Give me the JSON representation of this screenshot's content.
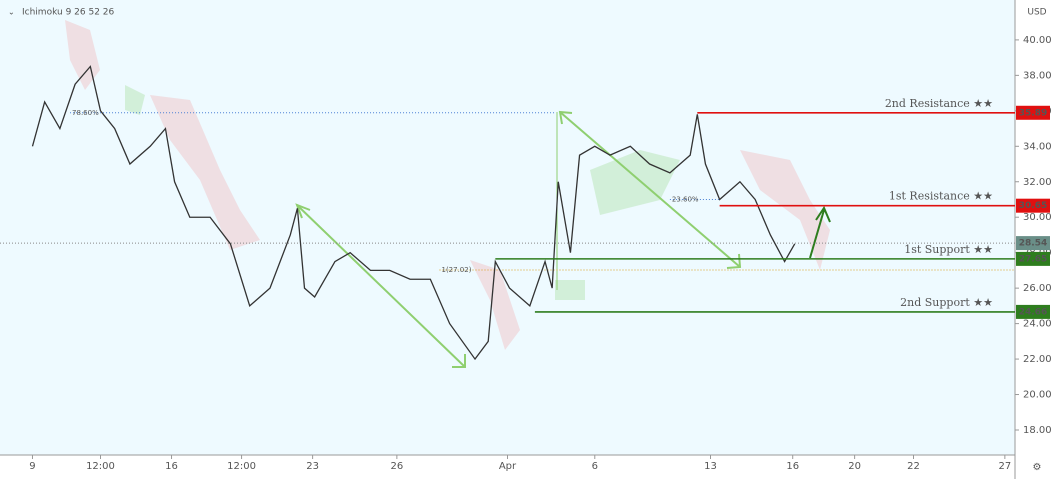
{
  "chart_data": {
    "type": "line",
    "indicator": "Ichimoku 9 26 52 26",
    "currency": "USD",
    "x": [
      3.2,
      4.4,
      5.9,
      7.4,
      8.9,
      9.9,
      11.3,
      12.8,
      14.8,
      16.3,
      17.2,
      18.7,
      20.7,
      22.7,
      24.6,
      26.6,
      28.6,
      29.3,
      30,
      31,
      33,
      34.5,
      36.5,
      38.4,
      40.4,
      42.4,
      44.3,
      46.8,
      48.1,
      48.8,
      50.2,
      52.2,
      53.7,
      54.4,
      55,
      56.2,
      57.1,
      58.6,
      60.1,
      62.1,
      64,
      66,
      68,
      68.7,
      69.5,
      70.9,
      72.9,
      74.4,
      75.9,
      77.3,
      78.3
    ],
    "values": [
      34,
      36.5,
      35,
      37.5,
      38.5,
      36,
      35,
      33,
      34,
      35,
      32,
      30,
      30,
      28.5,
      25,
      26,
      29,
      30.5,
      26,
      25.5,
      27.5,
      28,
      27,
      27,
      26.5,
      26.5,
      24,
      22,
      23,
      27.5,
      26,
      25,
      27.5,
      26,
      32,
      28,
      33.5,
      34,
      33.5,
      34,
      33,
      32.5,
      33.5,
      35.8,
      33,
      31,
      32,
      31,
      29,
      27.5,
      28.5
    ],
    "color": "#333333",
    "last_price": 28.54,
    "levels": [
      {
        "label": "2nd Resistance ★★",
        "value": 35.89,
        "color": "#e01010",
        "start": 68.7
      },
      {
        "label": "1st Resistance ★★",
        "value": 30.65,
        "color": "#e01010",
        "start": 70.9
      },
      {
        "label": "1st Support ★★",
        "value": 27.65,
        "color": "#2e7d1e",
        "start": 48.8
      },
      {
        "label": "2nd Support ★★",
        "value": 24.66,
        "color": "#2e7d1e",
        "start": 52.7
      }
    ],
    "fib": [
      {
        "label": "78.60%",
        "value": 35.89,
        "start": 6.9,
        "end": 54.7,
        "color": "#4a7fd4"
      },
      {
        "label": "23.60%",
        "value": 31.0,
        "start": 66,
        "end": 70.9,
        "color": "#4a7fd4"
      },
      {
        "label": "1(27.02)",
        "value": 27.02,
        "start": 43.3,
        "end": 100,
        "color": "#d9a020"
      }
    ],
    "ylim": [
      16.59,
      42.25
    ],
    "yticks": [
      {
        "value": 18,
        "label": "18.00"
      },
      {
        "value": 20,
        "label": "20.00"
      },
      {
        "value": 22,
        "label": "22.00"
      },
      {
        "value": 24,
        "label": "24.00"
      },
      {
        "value": 26,
        "label": "26.00"
      },
      {
        "value": 28,
        "label": "28.00"
      },
      {
        "value": 30,
        "label": "30.00"
      },
      {
        "value": 32,
        "label": "32.00"
      },
      {
        "value": 34,
        "label": "34.00"
      },
      {
        "value": 36,
        "label": "36.00"
      },
      {
        "value": 38,
        "label": "38.00"
      },
      {
        "value": 40,
        "label": "40.00"
      }
    ],
    "xlim": [
      0,
      100
    ],
    "xticks": [
      {
        "value": 3.2,
        "label": "9"
      },
      {
        "value": 9.9,
        "label": "12:00"
      },
      {
        "value": 16.9,
        "label": "16"
      },
      {
        "value": 23.8,
        "label": "12:00"
      },
      {
        "value": 30.8,
        "label": "23"
      },
      {
        "value": 39.1,
        "label": "26"
      },
      {
        "value": 50,
        "label": "Apr"
      },
      {
        "value": 58.6,
        "label": "6"
      },
      {
        "value": 70,
        "label": "13"
      },
      {
        "value": 78.1,
        "label": "16"
      },
      {
        "value": 84.2,
        "label": "20"
      },
      {
        "value": 90,
        "label": "22"
      },
      {
        "value": 99,
        "label": "27"
      }
    ]
  }
}
